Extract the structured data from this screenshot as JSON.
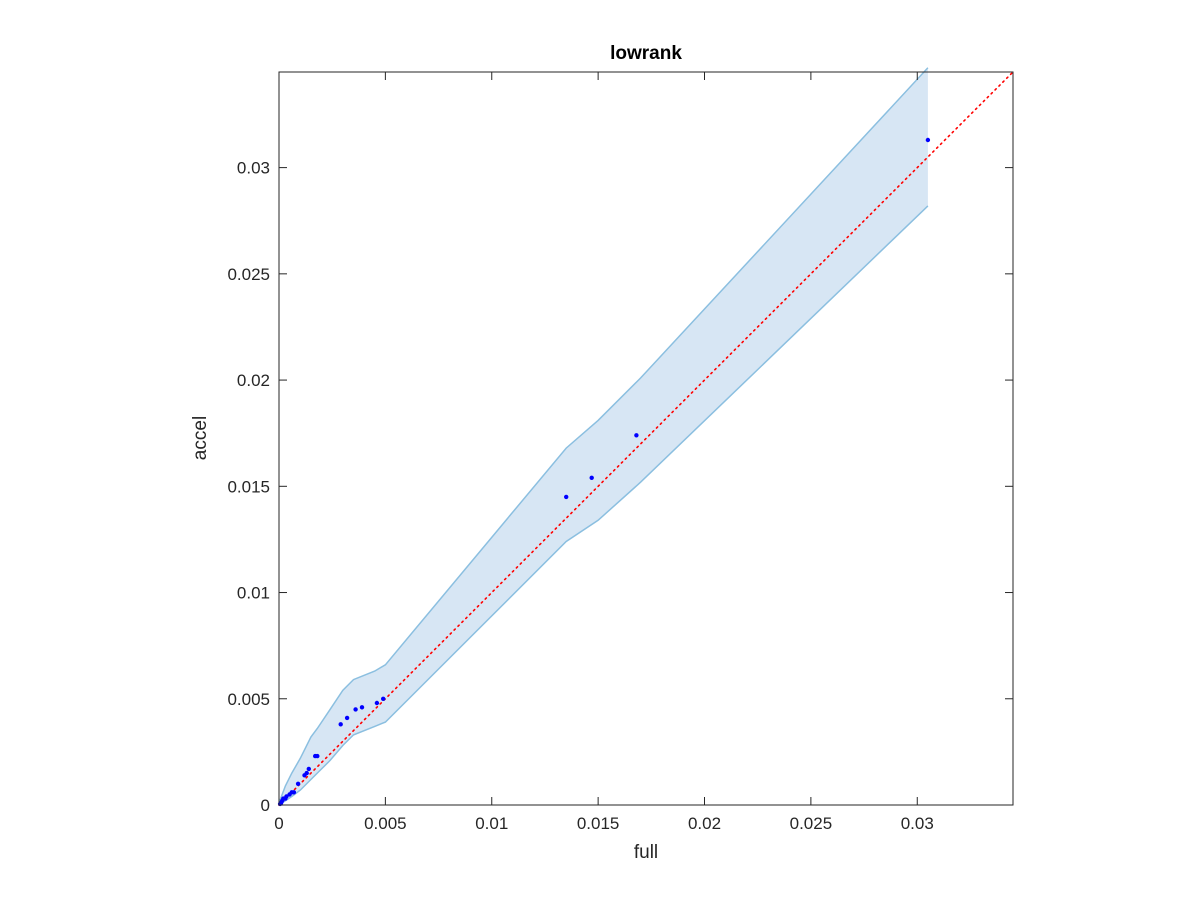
{
  "chart_data": {
    "type": "scatter",
    "title": "lowrank",
    "xlabel": "full",
    "ylabel": "accel",
    "xlim": [
      0,
      0.0345
    ],
    "ylim": [
      0,
      0.0345
    ],
    "x_ticks": [
      0,
      0.005,
      0.01,
      0.015,
      0.02,
      0.025,
      0.03
    ],
    "x_tick_labels": [
      "0",
      "0.005",
      "0.01",
      "0.015",
      "0.02",
      "0.025",
      "0.03"
    ],
    "y_ticks": [
      0,
      0.005,
      0.01,
      0.015,
      0.02,
      0.025,
      0.03
    ],
    "y_tick_labels": [
      "0",
      "0.005",
      "0.01",
      "0.015",
      "0.02",
      "0.025",
      "0.03"
    ],
    "grid": false,
    "series": [
      {
        "kind": "points",
        "color": "#0000ff",
        "x": [
          5e-05,
          0.0001,
          0.00015,
          0.0002,
          0.0003,
          0.00035,
          0.0005,
          0.0006,
          0.0007,
          0.0009,
          0.0012,
          0.0013,
          0.0014,
          0.0017,
          0.0018,
          0.0029,
          0.0032,
          0.0036,
          0.0039,
          0.0046,
          0.0049,
          0.0135,
          0.0147,
          0.0168,
          0.0305
        ],
        "y": [
          5e-05,
          0.0001,
          0.0002,
          0.0003,
          0.0003,
          0.0004,
          0.0005,
          0.0006,
          0.0006,
          0.001,
          0.0014,
          0.0015,
          0.0017,
          0.0023,
          0.0023,
          0.0038,
          0.0041,
          0.0045,
          0.0046,
          0.0048,
          0.005,
          0.0145,
          0.0154,
          0.0174,
          0.0313
        ]
      },
      {
        "kind": "reference-line",
        "style": "dotted",
        "color": "#ff0000",
        "x": [
          0,
          0.0345
        ],
        "y": [
          0,
          0.0345
        ]
      },
      {
        "kind": "band",
        "fill_color": "#d7e6f4",
        "edge_color": "#8bbfe0",
        "x": [
          0,
          0.0003,
          0.0006,
          0.001,
          0.0015,
          0.0018,
          0.0024,
          0.003,
          0.0035,
          0.0045,
          0.005,
          0.0135,
          0.015,
          0.017,
          0.0305
        ],
        "upper": [
          0.0001,
          0.0009,
          0.0015,
          0.0022,
          0.0032,
          0.0036,
          0.0045,
          0.0054,
          0.0059,
          0.0063,
          0.0066,
          0.0168,
          0.0181,
          0.0201,
          0.0347
        ],
        "lower": [
          0,
          0.0002,
          0.0004,
          0.0007,
          0.0012,
          0.0015,
          0.0021,
          0.0028,
          0.0033,
          0.0037,
          0.0039,
          0.0124,
          0.0134,
          0.0152,
          0.0282
        ]
      }
    ]
  },
  "colors": {
    "axes": "#262626",
    "background": "#ffffff"
  }
}
